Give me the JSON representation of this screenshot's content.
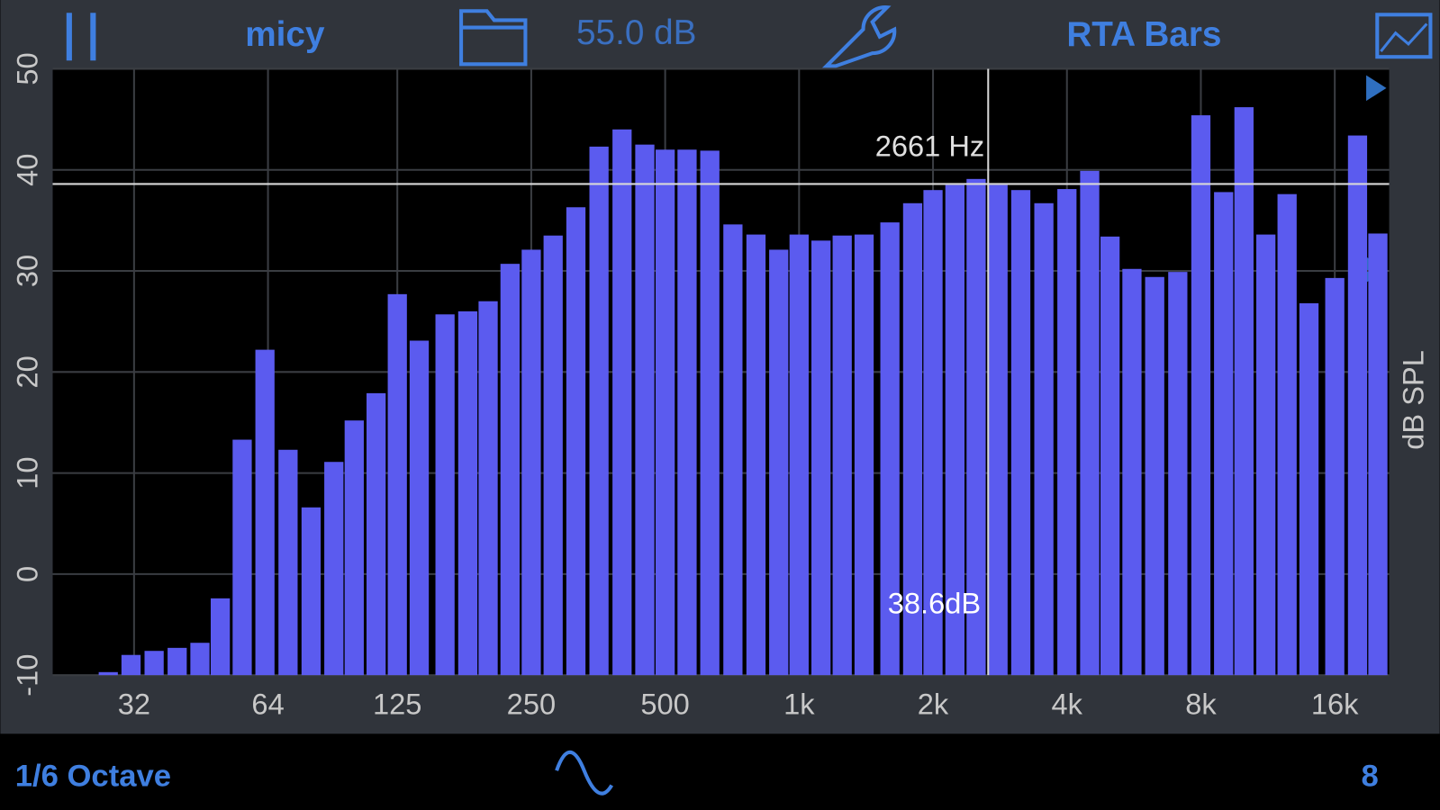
{
  "toolbar": {
    "source": "micy",
    "level": "55.0 dB",
    "mode": "RTA Bars"
  },
  "footer": {
    "resolution": "1/6 Octave",
    "count": "8"
  },
  "chart_data": {
    "type": "bar",
    "y_label": "dB SPL",
    "xscale": "log",
    "grid": true,
    "color": "#5b5bef",
    "x": [
      22.4,
      25,
      28,
      31.5,
      35.5,
      40,
      45,
      50,
      56,
      63,
      71,
      80,
      90,
      100,
      112,
      125,
      140,
      160,
      180,
      200,
      224,
      250,
      280,
      315,
      355,
      400,
      450,
      500,
      560,
      630,
      710,
      800,
      900,
      1000,
      1120,
      1250,
      1400,
      1600,
      1800,
      2000,
      2240,
      2500,
      2800,
      3150,
      3550,
      4000,
      4500,
      5000,
      5600,
      6300,
      7100,
      8000,
      9000,
      10000,
      11200,
      12500,
      14000,
      16000,
      18000,
      20000
    ],
    "values": [
      -10,
      -10,
      -9.7,
      -8.0,
      -7.6,
      -7.3,
      -6.8,
      -2.4,
      13.3,
      22.2,
      12.3,
      6.6,
      11.1,
      15.2,
      17.9,
      27.7,
      23.1,
      25.7,
      26.0,
      27.0,
      30.7,
      32.1,
      33.5,
      36.3,
      42.3,
      44.0,
      42.5,
      42.0,
      42.0,
      41.9,
      34.6,
      33.6,
      32.1,
      33.6,
      33.0,
      33.5,
      33.6,
      34.8,
      36.7,
      38.0,
      38.5,
      39.1,
      38.5,
      38.0,
      36.7,
      38.1,
      39.9,
      33.4,
      30.2,
      29.4,
      29.9,
      45.4,
      37.8,
      46.2,
      33.6,
      37.6,
      26.8,
      29.3,
      43.4,
      33.7
    ],
    "xlim": [
      21,
      21200
    ],
    "xticks": [
      32,
      64,
      125,
      250,
      500,
      {
        "value": 1000,
        "label": "1k"
      },
      {
        "value": 2000,
        "label": "2k"
      },
      {
        "value": 4000,
        "label": "4k"
      },
      {
        "value": 8000,
        "label": "8k"
      },
      {
        "value": 16000,
        "label": "16k"
      }
    ],
    "ylim": [
      -10,
      50
    ],
    "yticks": [
      -10,
      0,
      10,
      20,
      30,
      40,
      50
    ],
    "cursor": {
      "x": 2661,
      "y": 38.6,
      "x_label": "2661 Hz",
      "y_label": "38.6dB"
    }
  }
}
